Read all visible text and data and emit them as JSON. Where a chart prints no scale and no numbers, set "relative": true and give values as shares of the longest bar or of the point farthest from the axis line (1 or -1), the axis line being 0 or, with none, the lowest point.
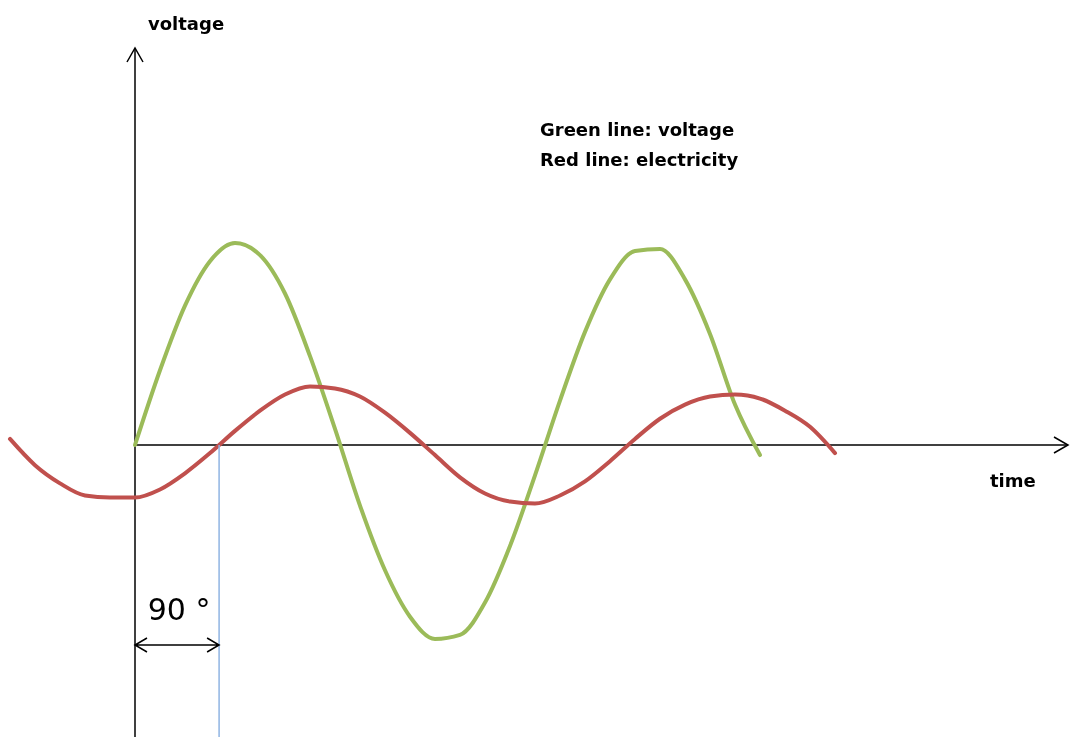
{
  "chart_data": {
    "type": "line",
    "relative": true,
    "marker": "none",
    "line_style": "solid",
    "categories": [
      null,
      null,
      null,
      null,
      null,
      null,
      null,
      null,
      null,
      null,
      null,
      null,
      null,
      null,
      null,
      null,
      null,
      null,
      null,
      null,
      null,
      null,
      null,
      null,
      null,
      null,
      null,
      null,
      null,
      null,
      null,
      null,
      null,
      null
    ],
    "series": [
      {
        "color": "#9bbb59",
        "values": [
          null,
          null,
          null,
          null,
          null,
          0,
          0.37,
          0.69,
          0.91,
          1,
          0.94,
          0.75,
          0.44,
          0.08,
          -0.3,
          -0.62,
          -0.85,
          -0.96,
          -0.94,
          -0.78,
          -0.5,
          -0.15,
          0.22,
          0.56,
          0.82,
          0.96,
          0.97,
          0.82,
          0.55,
          0.2,
          -0.05,
          null,
          null,
          null
        ]
      },
      {
        "color": "#c0504d",
        "values": [
          0.03,
          -0.1,
          -0.19,
          -0.25,
          -0.26,
          -0.26,
          -0.22,
          -0.14,
          -0.04,
          0.07,
          0.17,
          0.25,
          0.29,
          0.28,
          0.24,
          0.16,
          0.06,
          -0.05,
          -0.16,
          -0.24,
          -0.28,
          -0.29,
          -0.25,
          -0.18,
          -0.08,
          0.03,
          0.13,
          0.2,
          0.24,
          0.25,
          0.23,
          0.17,
          0.09,
          -0.04
        ]
      }
    ],
    "annotations": [
      "voltage",
      "time",
      "Green line: voltage",
      "Red line: electricity",
      "90 °"
    ]
  }
}
